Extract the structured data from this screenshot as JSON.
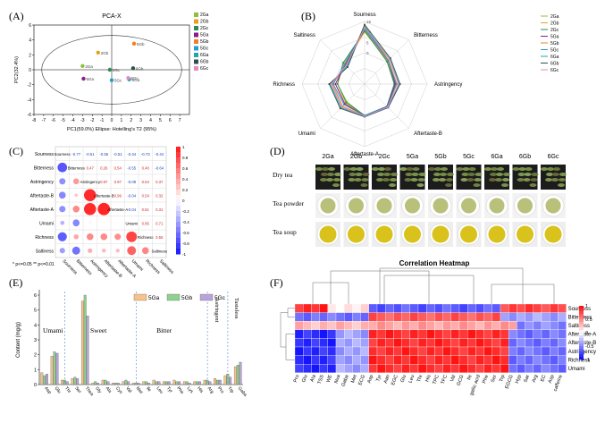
{
  "panel_labels": [
    "(A)",
    "(B)",
    "(C)",
    "(D)",
    "(E)",
    "(F)"
  ],
  "groups": [
    "2Ga",
    "2Gb",
    "2Gc",
    "5Ga",
    "5Gb",
    "5Gc",
    "6Ga",
    "6Gb",
    "6Gc"
  ],
  "colors": {
    "2Ga": "#8fbf3f",
    "2Gb": "#e3a21a",
    "2Gc": "#2e8b57",
    "5Ga": "#8b1a8b",
    "5Gb": "#f07f25",
    "5Gc": "#2a9bcf",
    "6Ga": "#20a7a8",
    "6Gb": "#2f4f4f",
    "6Gc": "#e78ac3"
  },
  "chart_data": [
    {
      "id": "A",
      "type": "scatter",
      "title": "PCA-X",
      "xlabel": "PC1(59.0%)  Ellipse: Hotelling's T2 (95%)",
      "ylabel": "PC2(32.4%)",
      "xlim": [
        -8,
        8
      ],
      "ylim": [
        -6,
        6
      ],
      "xticks": [
        "-8",
        "-7",
        "-6",
        "-5",
        "-4",
        "-3",
        "-2",
        "-1",
        "0",
        "1",
        "2",
        "3",
        "4",
        "5",
        "6",
        "7"
      ],
      "yticks": [
        "-6",
        "-4",
        "-2",
        "0",
        "2",
        "4",
        "6"
      ],
      "points": [
        {
          "label": "2Ga",
          "x": -3.0,
          "y": 0.5
        },
        {
          "label": "2Gb",
          "x": -1.4,
          "y": 2.3
        },
        {
          "label": "2Gc",
          "x": -0.2,
          "y": 0.0
        },
        {
          "label": "5Ga",
          "x": -2.9,
          "y": -1.2
        },
        {
          "label": "5Gb",
          "x": 2.3,
          "y": 3.5
        },
        {
          "label": "5Gc",
          "x": 0.0,
          "y": -1.4
        },
        {
          "label": "6Ga",
          "x": 1.8,
          "y": -1.3
        },
        {
          "label": "6Gb",
          "x": 2.2,
          "y": 0.2
        },
        {
          "label": "6Gc",
          "x": 1.7,
          "y": -1.1
        }
      ],
      "legend": [
        "2Ga",
        "2Gb",
        "2Gc",
        "5Ga",
        "5Gb",
        "5Gc",
        "6Ga",
        "6Gb",
        "6Gc"
      ]
    },
    {
      "id": "B",
      "type": "radar",
      "axes": [
        "Sourness",
        "Bitterness",
        "Astringency",
        "Aftertaste-B",
        "Aftertaste-A",
        "Umami",
        "Richness",
        "Saltiness"
      ],
      "rticks": [
        "15",
        "10",
        "5",
        "0"
      ],
      "rlim": [
        -15,
        15
      ],
      "series": [
        {
          "name": "2Ga",
          "values": [
            11,
            0.5,
            -0.5,
            0.2,
            0.1,
            -3,
            -2,
            -1
          ]
        },
        {
          "name": "2Gb",
          "values": [
            10,
            0.8,
            -0.2,
            0.3,
            0.2,
            -2,
            -1,
            -1.5
          ]
        },
        {
          "name": "2Gc",
          "values": [
            10.5,
            0.2,
            -0.8,
            0.1,
            0.0,
            -2.5,
            -2,
            -0.5
          ]
        },
        {
          "name": "5Ga",
          "values": [
            12,
            1.0,
            -0.3,
            0.2,
            0.2,
            -1.5,
            -1,
            -2
          ]
        },
        {
          "name": "5Gb",
          "values": [
            13,
            1.2,
            0.5,
            0.4,
            0.3,
            0,
            0.5,
            -2.5
          ]
        },
        {
          "name": "5Gc",
          "values": [
            11.5,
            0.9,
            0.2,
            0.3,
            0.1,
            -1,
            0,
            -1.5
          ]
        },
        {
          "name": "6Ga",
          "values": [
            12.5,
            2.0,
            1.5,
            0.8,
            0.5,
            1,
            1.5,
            -3
          ]
        },
        {
          "name": "6Gb",
          "values": [
            13.5,
            2.5,
            2.0,
            1.0,
            0.7,
            1.5,
            2,
            -3.5
          ]
        },
        {
          "name": "6Gc",
          "values": [
            12,
            1.8,
            1.2,
            0.7,
            0.4,
            0.5,
            1,
            -2.5
          ]
        }
      ]
    },
    {
      "id": "C",
      "type": "heatmap",
      "subtype": "correlation-matrix",
      "variables": [
        "Sourness",
        "Bitterness",
        "Astringency",
        "Aftertaste-B",
        "Aftertaste-A",
        "Umami",
        "Richness",
        "Saltiness"
      ],
      "matrix": [
        [
          1,
          -0.77,
          -0.51,
          -0.55,
          -0.51,
          -0.34,
          -0.73,
          -0.44
        ],
        [
          -0.77,
          1,
          0.47,
          0.26,
          0.54,
          -0.55,
          0.4,
          -0.64
        ],
        [
          -0.51,
          0.47,
          1,
          0.97,
          0.97,
          -0.09,
          0.54,
          0.37
        ],
        [
          -0.55,
          0.26,
          0.97,
          1,
          0.99,
          -0.04,
          0.54,
          0.32
        ],
        [
          -0.51,
          0.54,
          0.97,
          0.99,
          1,
          -0.04,
          0.51,
          0.31
        ],
        [
          -0.34,
          -0.55,
          -0.09,
          -0.04,
          -0.04,
          1,
          0.85,
          0.71
        ],
        [
          -0.73,
          0.4,
          0.54,
          0.54,
          0.51,
          0.85,
          1,
          0.55
        ],
        [
          -0.44,
          -0.64,
          0.37,
          0.32,
          0.31,
          0.71,
          0.55,
          1
        ]
      ],
      "colorbar_ticks": [
        "1",
        "0.8",
        "0.6",
        "0.4",
        "0.2",
        "0",
        "-0.2",
        "-0.4",
        "-0.6",
        "-0.8",
        "-1"
      ],
      "footnote": "* p<=0.05  ** p<=0.01"
    },
    {
      "id": "E",
      "type": "bar",
      "ylabel": "Content (mg/g)",
      "ylim": [
        0,
        6
      ],
      "yticks": [
        "0",
        "1",
        "2",
        "3",
        "4",
        "5",
        "6"
      ],
      "categories": [
        "Asp",
        "Glu",
        "Thr",
        "Ser",
        "Thea",
        "Gly",
        "Ala",
        "Cys",
        "Val",
        "Met",
        "Ile",
        "Leu",
        "Tyr",
        "Phe",
        "Lys",
        "His",
        "Arg",
        "Pro",
        "Trp",
        "Gaba"
      ],
      "series": [
        {
          "name": "5Ga",
          "values": [
            0.8,
            1.9,
            0.3,
            0.4,
            5.6,
            0.1,
            0.3,
            0.1,
            0.2,
            0.1,
            0.2,
            0.3,
            0.2,
            0.3,
            0.2,
            0.2,
            0.3,
            0.4,
            0.6,
            1.2
          ]
        },
        {
          "name": "5Gb",
          "values": [
            0.6,
            2.2,
            0.3,
            0.5,
            6.0,
            0.2,
            0.3,
            0.1,
            0.3,
            0.1,
            0.2,
            0.2,
            0.2,
            0.2,
            0.2,
            0.2,
            0.3,
            0.3,
            0.7,
            1.3
          ]
        },
        {
          "name": "5Gc",
          "values": [
            0.7,
            2.1,
            0.2,
            0.4,
            4.6,
            0.1,
            0.2,
            0.1,
            0.2,
            0.1,
            0.1,
            0.2,
            0.2,
            0.2,
            0.1,
            0.2,
            0.2,
            0.3,
            0.5,
            1.5
          ]
        }
      ],
      "sections": [
        "Umami",
        "Sweet",
        "Bitter",
        "Astringent",
        "Tasteless"
      ]
    },
    {
      "id": "F",
      "type": "heatmap",
      "title": "Correlation Heatmap",
      "rows": [
        "Sourness",
        "Bitterness",
        "Saltiness",
        "Aftertaste-A",
        "Aftertaste-B",
        "Astringency",
        "Richness",
        "Umami"
      ],
      "columns": [
        "Pro",
        "Glu",
        "Ala",
        "TSS",
        "WE",
        "Nva",
        "Gaba",
        "Met",
        "ECG",
        "Asp",
        "Tyr",
        "Aan",
        "EGC",
        "Glu",
        "Leu",
        "Thr",
        "His",
        "TPC",
        "TFC",
        "Val",
        "GCG",
        "Ile",
        "gallic acid",
        "Phe",
        "Ser",
        "Trp",
        "EGCG",
        "Hyp",
        "Sar",
        "Arg",
        "EC",
        "Asp",
        "caffeine"
      ],
      "colorbar_ticks": [
        "1",
        "0.5",
        "0",
        "-0.5",
        "-1"
      ]
    }
  ],
  "panel_d": {
    "columns": [
      "2Ga",
      "2Gb",
      "2Gc",
      "5Ga",
      "5Gb",
      "5Gc",
      "6Ga",
      "6Gb",
      "6Gc"
    ],
    "rows": [
      "Dry tea",
      "Tea powder",
      "Tea soup"
    ]
  },
  "panel_e_legend": [
    "5Ga",
    "5Gb",
    "5Gc"
  ],
  "panel_e_colors": {
    "5Ga": "#f5c28a",
    "5Gb": "#8fd18f",
    "5Gc": "#b9a3d9"
  }
}
